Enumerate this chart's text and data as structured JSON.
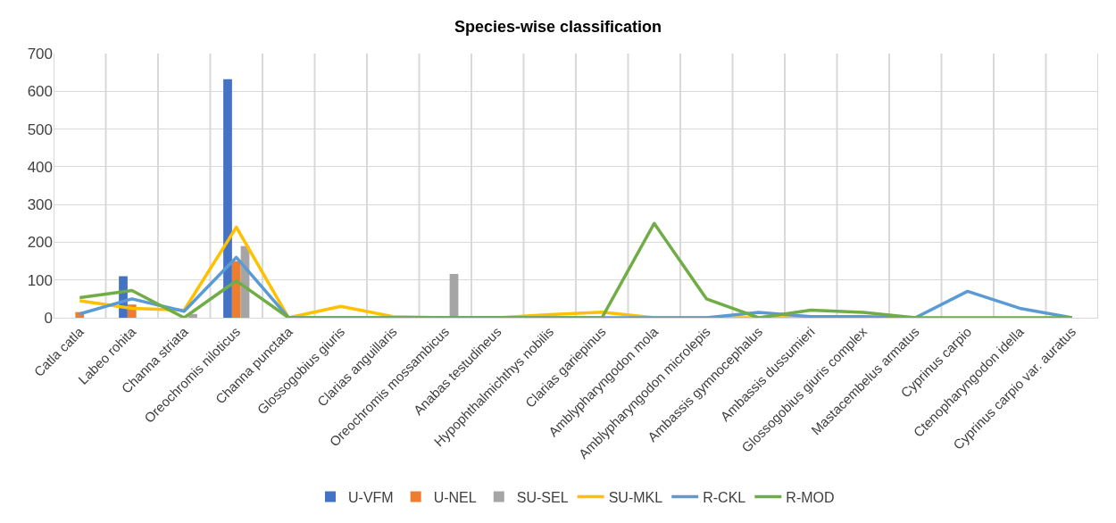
{
  "chart_data": {
    "type": "bar",
    "title": "Species-wise classification",
    "categories": [
      "Catla catla",
      "Labeo rohita",
      "Channa striata",
      "Oreochromis niloticus",
      "Channa punctata",
      "Glossogobius giuris",
      "Clarias anguillaris",
      "Oreochromis mossambicus",
      "Anabas testudineus",
      "Hypophthalmichthys nobilis",
      "Clarias gariepinus",
      "Amblypharyngodon mola",
      "Amblypharyngodon microlepis",
      "Ambassis gymnocephalus",
      "Ambassis dussumieri",
      "Glossogobius giuris complex",
      "Mastacembelus armatus",
      "Cyprinus carpio",
      "Ctenopharyngodon idella",
      "Cyprinus carpio var. auratus"
    ],
    "series": [
      {
        "name": "U-VFM",
        "color": "#4472c4",
        "values": [
          0,
          110,
          0,
          632,
          0,
          0,
          0,
          0,
          0,
          0,
          0,
          0,
          0,
          0,
          0,
          0,
          0,
          0,
          0,
          0
        ]
      },
      {
        "name": "U-NEL",
        "color": "#ed7d31",
        "values": [
          15,
          35,
          0,
          150,
          0,
          0,
          0,
          0,
          0,
          0,
          0,
          0,
          0,
          0,
          0,
          0,
          0,
          0,
          0,
          0
        ]
      },
      {
        "name": "SU-SEL",
        "color": "#a5a5a5",
        "values": [
          0,
          0,
          10,
          190,
          0,
          0,
          0,
          116,
          0,
          0,
          0,
          0,
          0,
          0,
          0,
          0,
          0,
          0,
          0,
          0
        ]
      },
      {
        "name": "SU-MKL",
        "type": "line",
        "color": "#ffc000",
        "values": [
          45,
          25,
          20,
          240,
          0,
          30,
          3,
          0,
          0,
          8,
          15,
          0,
          0,
          0,
          0,
          0,
          null,
          null,
          null,
          null
        ]
      },
      {
        "name": "R-CKL",
        "type": "line",
        "color": "#5b9bd5",
        "values": [
          10,
          50,
          17,
          160,
          0,
          0,
          0,
          0,
          0,
          0,
          0,
          0,
          0,
          14,
          3,
          3,
          0,
          70,
          25,
          0
        ]
      },
      {
        "name": "R-MOD",
        "type": "line",
        "color": "#70ad47",
        "values": [
          53,
          72,
          0,
          98,
          0,
          0,
          0,
          0,
          0,
          0,
          0,
          250,
          50,
          0,
          20,
          14,
          0,
          0,
          0,
          0
        ]
      }
    ],
    "ylim": [
      0,
      700
    ],
    "yticks": [
      0,
      100,
      200,
      300,
      400,
      500,
      600,
      700
    ],
    "grid": true,
    "legend": "bottom",
    "marker": "none",
    "line_style": "solid"
  }
}
